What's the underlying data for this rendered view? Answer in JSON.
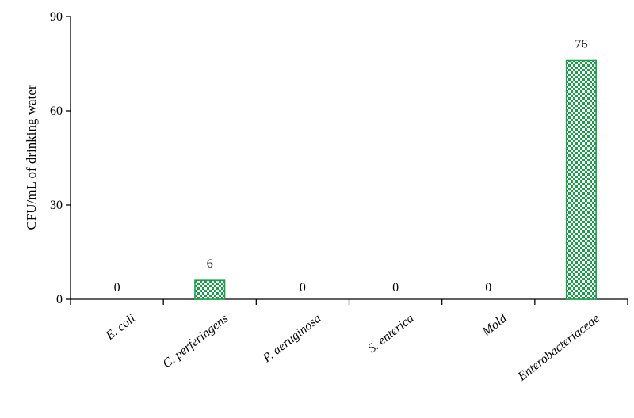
{
  "chart_data": {
    "type": "bar",
    "categories": [
      "E. coli",
      "C. perferingens",
      "P. aeruginosa",
      "S. enterica",
      "Mold",
      "Enterobacteriaceae"
    ],
    "values": [
      0,
      6,
      0,
      0,
      0,
      76
    ],
    "data_labels": [
      "0",
      "6",
      "0",
      "0",
      "0",
      "76"
    ],
    "ylabel": "CFU/mL of drinking water",
    "ylim": [
      0,
      90
    ],
    "yticks": [
      0,
      30,
      60,
      90
    ],
    "ytick_labels": [
      "0",
      "30",
      "60",
      "90"
    ],
    "grid": false,
    "bar_color": "#1a9e47",
    "bar_pattern": "checkerboard"
  }
}
